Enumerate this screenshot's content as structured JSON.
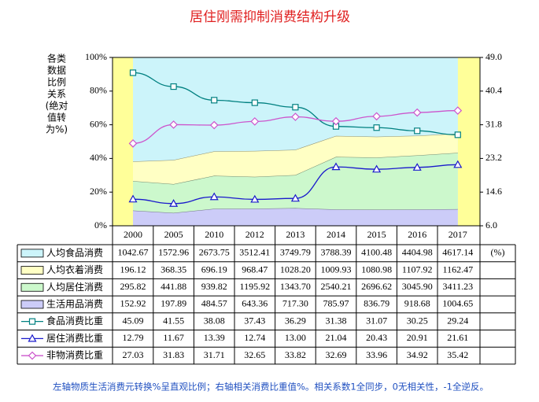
{
  "chart_data": {
    "type": "combo",
    "title": "居住刚需抑制消费结构升级",
    "ylabel": [
      "各类",
      "数据",
      "比例",
      "关系",
      "(绝对",
      "值转",
      "为%)"
    ],
    "categories": [
      "2000",
      "2005",
      "2010",
      "2012",
      "2013",
      "2014",
      "2015",
      "2016",
      "2017"
    ],
    "ylim": [
      0,
      100
    ],
    "yticks": [
      {
        "value": 0,
        "label": "0%"
      },
      {
        "value": 20,
        "label": "20%"
      },
      {
        "value": 40,
        "label": "40%"
      },
      {
        "value": 60,
        "label": "60%"
      },
      {
        "value": 80,
        "label": "80%"
      },
      {
        "value": 100,
        "label": "100%"
      }
    ],
    "y2lim": [
      6,
      49
    ],
    "y2ticks": [
      {
        "value": 6,
        "label": "6.0"
      },
      14.6,
      23.2,
      31.8,
      40.4,
      {
        "value": 49,
        "label": "49.0"
      }
    ],
    "table_unit": "(%)",
    "series": [
      {
        "name": "人均食品消费",
        "kind": "area",
        "color": "#ccf4fa",
        "values": [
          1042.67,
          1572.96,
          2673.75,
          3512.41,
          3749.79,
          3788.39,
          4100.48,
          4404.98,
          4617.14
        ]
      },
      {
        "name": "人均衣着消费",
        "kind": "area",
        "color": "#ffffc4",
        "values": [
          196.12,
          368.35,
          696.19,
          968.47,
          1028.2,
          1009.93,
          1080.98,
          1107.92,
          1162.47
        ],
        "value_labels": [
          "196.12",
          "368.35",
          "696.19",
          "968.47",
          "1028.20",
          "1009.93",
          "1080.98",
          "1107.92",
          "1162.47"
        ]
      },
      {
        "name": "人均居住消费",
        "kind": "area",
        "color": "#ccf8cc",
        "values": [
          295.82,
          441.88,
          939.82,
          1195.92,
          1343.7,
          2540.21,
          2696.62,
          3045.9,
          3411.23
        ],
        "value_labels": [
          "295.82",
          "441.88",
          "939.82",
          "1195.92",
          "1343.70",
          "2540.21",
          "2696.62",
          "3045.90",
          "3411.23"
        ]
      },
      {
        "name": "生活用品消费",
        "kind": "area",
        "color": "#ccccf8",
        "values": [
          152.92,
          197.89,
          484.57,
          643.36,
          717.3,
          785.97,
          836.79,
          918.68,
          1004.65
        ],
        "value_labels": [
          "152.92",
          "197.89",
          "484.57",
          "643.36",
          "717.30",
          "785.97",
          "836.79",
          "918.68",
          "1004.65"
        ]
      },
      {
        "name": "食品消费比重",
        "kind": "line",
        "marker": "square",
        "axis": "y2",
        "color": "#008080",
        "values": [
          45.09,
          41.55,
          38.08,
          37.43,
          36.29,
          31.38,
          31.07,
          30.25,
          29.24
        ]
      },
      {
        "name": "居住消费比重",
        "kind": "line",
        "marker": "triangle",
        "axis": "y2",
        "color": "#1a1acc",
        "values": [
          12.79,
          11.67,
          13.39,
          12.74,
          13.0,
          21.04,
          20.43,
          20.91,
          21.61
        ],
        "value_labels": [
          "12.79",
          "11.67",
          "13.39",
          "12.74",
          "13.00",
          "21.04",
          "20.43",
          "20.91",
          "21.61"
        ]
      },
      {
        "name": "非物消费比重",
        "kind": "line",
        "marker": "diamond",
        "axis": "y2",
        "color": "#cc55cc",
        "values": [
          27.03,
          31.83,
          31.71,
          32.65,
          33.82,
          32.69,
          33.96,
          34.92,
          35.42
        ]
      }
    ],
    "note": "左轴物质生活消费元转换%呈直观比例；右轴相关消费比重值%。相关系数1全同步，0无相关性，-1全逆反。"
  }
}
